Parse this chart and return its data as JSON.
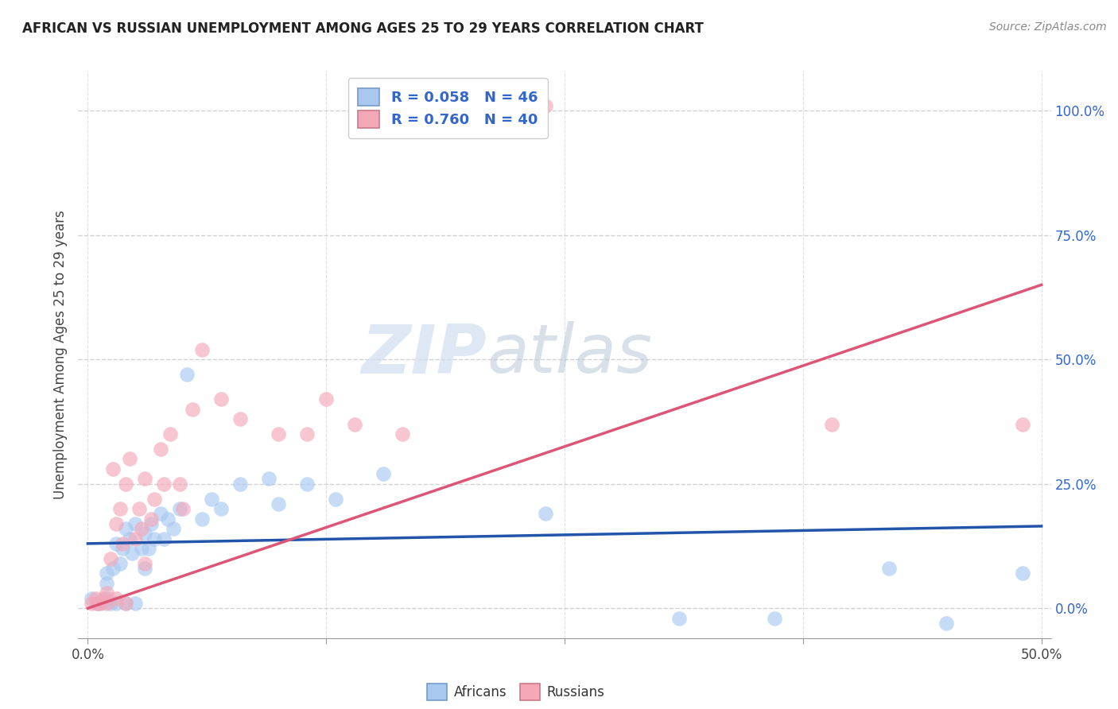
{
  "title": "AFRICAN VS RUSSIAN UNEMPLOYMENT AMONG AGES 25 TO 29 YEARS CORRELATION CHART",
  "source": "Source: ZipAtlas.com",
  "ylabel": "Unemployment Among Ages 25 to 29 years",
  "y_tick_labels": [
    "0.0%",
    "25.0%",
    "50.0%",
    "75.0%",
    "100.0%"
  ],
  "y_tick_vals": [
    0.0,
    0.25,
    0.5,
    0.75,
    1.0
  ],
  "x_tick_labels": [
    "0.0%",
    "",
    "",
    "",
    "50.0%"
  ],
  "x_tick_vals": [
    0.0,
    0.125,
    0.25,
    0.375,
    0.5
  ],
  "xlim": [
    -0.005,
    0.505
  ],
  "ylim": [
    -0.06,
    1.08
  ],
  "african_R": 0.058,
  "african_N": 46,
  "russian_R": 0.76,
  "russian_N": 40,
  "african_color": "#a8c8f0",
  "russian_color": "#f4a8b8",
  "african_line_color": "#2255aa",
  "russian_line_color": "#dd5577",
  "legend_text_color": "#3366cc",
  "background_color": "#ffffff",
  "grid_color": "#cccccc",
  "watermark_zip": "ZIP",
  "watermark_atlas": "atlas",
  "africans_x": [
    0.002,
    0.005,
    0.007,
    0.008,
    0.01,
    0.01,
    0.01,
    0.012,
    0.013,
    0.015,
    0.015,
    0.017,
    0.018,
    0.02,
    0.02,
    0.022,
    0.023,
    0.025,
    0.025,
    0.028,
    0.03,
    0.03,
    0.032,
    0.033,
    0.035,
    0.038,
    0.04,
    0.042,
    0.045,
    0.048,
    0.052,
    0.06,
    0.065,
    0.07,
    0.08,
    0.095,
    0.1,
    0.115,
    0.13,
    0.155,
    0.24,
    0.31,
    0.36,
    0.42,
    0.45,
    0.49
  ],
  "africans_y": [
    0.02,
    0.01,
    0.01,
    0.015,
    0.02,
    0.05,
    0.07,
    0.01,
    0.08,
    0.01,
    0.13,
    0.09,
    0.12,
    0.01,
    0.16,
    0.14,
    0.11,
    0.01,
    0.17,
    0.12,
    0.08,
    0.15,
    0.12,
    0.17,
    0.14,
    0.19,
    0.14,
    0.18,
    0.16,
    0.2,
    0.47,
    0.18,
    0.22,
    0.2,
    0.25,
    0.26,
    0.21,
    0.25,
    0.22,
    0.27,
    0.19,
    -0.02,
    -0.02,
    0.08,
    -0.03,
    0.07
  ],
  "russians_x": [
    0.002,
    0.004,
    0.005,
    0.006,
    0.008,
    0.01,
    0.01,
    0.012,
    0.013,
    0.015,
    0.015,
    0.017,
    0.018,
    0.02,
    0.02,
    0.022,
    0.025,
    0.027,
    0.028,
    0.03,
    0.03,
    0.033,
    0.035,
    0.038,
    0.04,
    0.043,
    0.048,
    0.05,
    0.055,
    0.06,
    0.07,
    0.08,
    0.1,
    0.115,
    0.125,
    0.14,
    0.165,
    0.24,
    0.39,
    0.49
  ],
  "russians_y": [
    0.01,
    0.02,
    0.01,
    0.01,
    0.02,
    0.01,
    0.03,
    0.1,
    0.28,
    0.02,
    0.17,
    0.2,
    0.13,
    0.01,
    0.25,
    0.3,
    0.14,
    0.2,
    0.16,
    0.09,
    0.26,
    0.18,
    0.22,
    0.32,
    0.25,
    0.35,
    0.25,
    0.2,
    0.4,
    0.52,
    0.42,
    0.38,
    0.35,
    0.35,
    0.42,
    0.37,
    0.35,
    1.01,
    0.37,
    0.37
  ],
  "african_line_x": [
    0.0,
    0.5
  ],
  "african_line_y": [
    0.13,
    0.165
  ],
  "russian_line_x": [
    0.0,
    0.5
  ],
  "russian_line_y": [
    0.0,
    0.65
  ]
}
